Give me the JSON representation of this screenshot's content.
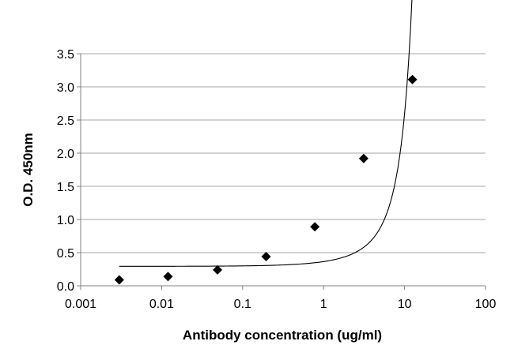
{
  "chart_data": {
    "type": "scatter",
    "title": "",
    "xlabel": "Antibody concentration (ug/ml)",
    "ylabel": "O.D. 450nm",
    "x_scale": "log",
    "xlim": [
      0.001,
      100
    ],
    "ylim": [
      0,
      3.5
    ],
    "x_tick_labels": [
      "0.001",
      "0.01",
      "0.1",
      "1",
      "10",
      "100"
    ],
    "y_tick_labels": [
      "0.0",
      "0.5",
      "1.0",
      "1.5",
      "2.0",
      "2.5",
      "3.0",
      "3.5"
    ],
    "grid": "horizontal",
    "legend": "none",
    "marker": "diamond",
    "trendline": "exponential",
    "colors": {
      "marker": "#000000",
      "grid": "#a6a6a6",
      "trendline": "#000000",
      "axis": "#808080"
    },
    "series": [
      {
        "x": [
          0.003,
          0.012,
          0.049,
          0.195,
          0.78,
          3.125,
          12.5
        ],
        "y": [
          0.09,
          0.14,
          0.24,
          0.44,
          0.89,
          1.92,
          3.11
        ]
      }
    ]
  }
}
